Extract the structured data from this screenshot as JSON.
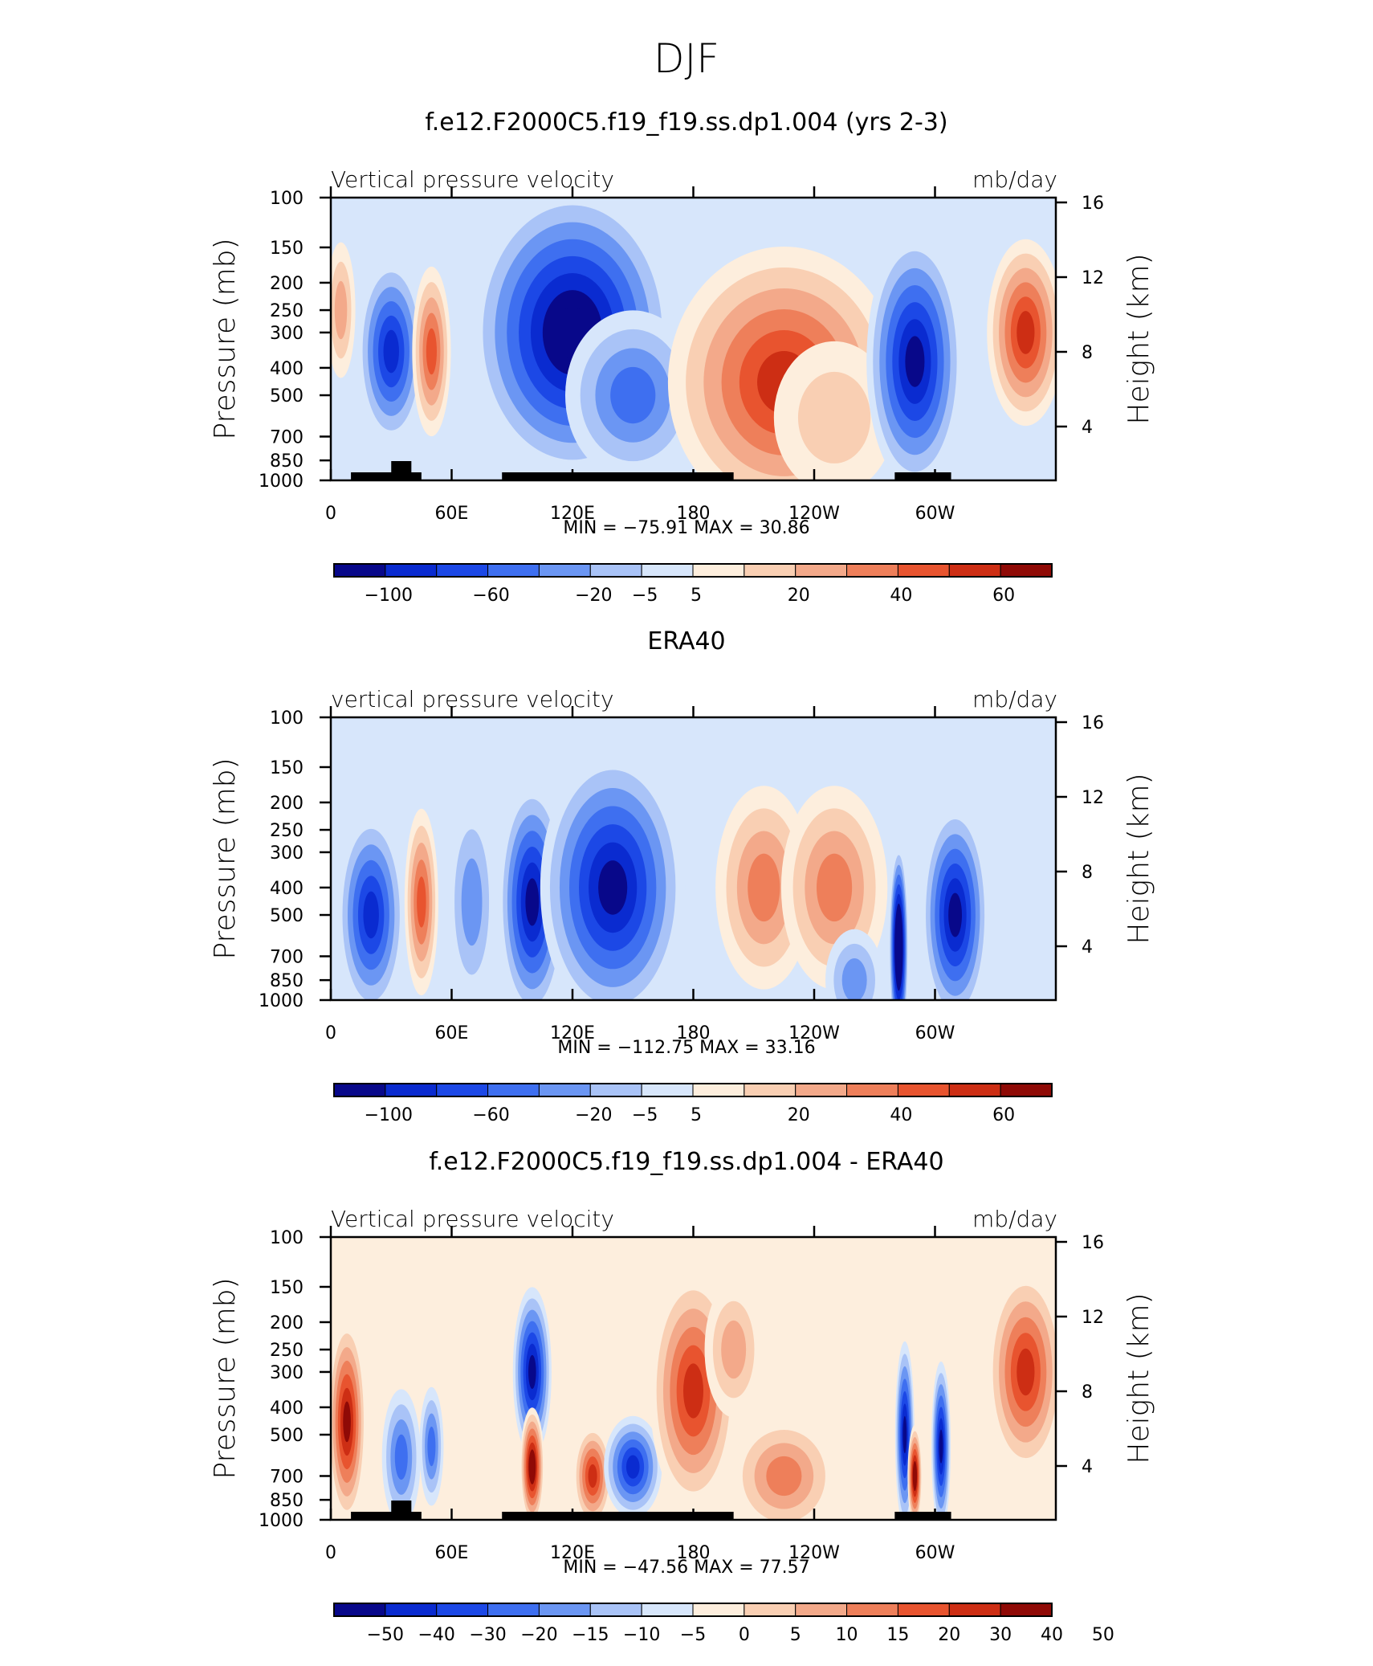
{
  "figure": {
    "main_title": "DJF"
  },
  "colors": {
    "scale": [
      "#08088a",
      "#0a2bd0",
      "#1c48e6",
      "#3e6ff0",
      "#6b96f3",
      "#a9c3f7",
      "#d7e6fb",
      "#fdeedd",
      "#f9cfb3",
      "#f3a98a",
      "#ee7f5a",
      "#e8542f",
      "#cd2e14",
      "#8f0a06"
    ]
  },
  "chart_data": [
    {
      "type": "heatmap",
      "title": "f.e12.F2000C5.f19_f19.ss.dp1.004 (yrs 2-3)",
      "left_label": "Vertical pressure velocity",
      "right_label": "mb/day",
      "ylabel": "Pressure (mb)",
      "ylabel2": "Height (km)",
      "x_ticks": [
        "0",
        "60E",
        "120E",
        "180",
        "120W",
        "60W"
      ],
      "y_ticks": [
        "100",
        "150",
        "200",
        "250",
        "300",
        "400",
        "500",
        "700",
        "850",
        "1000"
      ],
      "height_ticks": [
        "16",
        "12",
        "8",
        "4"
      ],
      "stats": "MIN = −75.91   MAX =   30.86",
      "colorbar_labels": [
        "−100",
        "−60",
        "−20",
        "−5",
        "5",
        "20",
        "40",
        "60"
      ],
      "blobs": [
        {
          "lon": 30,
          "p": 350,
          "w": 14,
          "h": 0.55,
          "v": -6
        },
        {
          "lon": 50,
          "p": 350,
          "w": 8,
          "h": 0.5,
          "v": 5
        },
        {
          "lon": 120,
          "p": 300,
          "w": 42,
          "h": 0.85,
          "v": -8
        },
        {
          "lon": 150,
          "p": 500,
          "w": 28,
          "h": 0.5,
          "v": -4
        },
        {
          "lon": 225,
          "p": 450,
          "w": 48,
          "h": 0.8,
          "v": 6
        },
        {
          "lon": 250,
          "p": 600,
          "w": 25,
          "h": 0.45,
          "v": 2
        },
        {
          "lon": 290,
          "p": 380,
          "w": 20,
          "h": 0.75,
          "v": -7
        },
        {
          "lon": 345,
          "p": 300,
          "w": 16,
          "h": 0.55,
          "v": 6
        },
        {
          "lon": 5,
          "p": 250,
          "w": 6,
          "h": 0.4,
          "v": 3
        }
      ]
    },
    {
      "type": "heatmap",
      "title": "ERA40",
      "left_label": "vertical pressure velocity",
      "right_label": "mb/day",
      "ylabel": "Pressure (mb)",
      "ylabel2": "Height (km)",
      "x_ticks": [
        "0",
        "60E",
        "120E",
        "180",
        "120W",
        "60W"
      ],
      "y_ticks": [
        "100",
        "150",
        "200",
        "250",
        "300",
        "400",
        "500",
        "700",
        "850",
        "1000"
      ],
      "height_ticks": [
        "16",
        "12",
        "8",
        "4"
      ],
      "stats": "MIN = −112.75   MAX =   33.16",
      "colorbar_labels": [
        "−100",
        "−60",
        "−20",
        "−5",
        "5",
        "20",
        "40",
        "60"
      ],
      "blobs": [
        {
          "lon": 20,
          "p": 500,
          "w": 14,
          "h": 0.6,
          "v": -6
        },
        {
          "lon": 45,
          "p": 450,
          "w": 7,
          "h": 0.55,
          "v": 5
        },
        {
          "lon": 70,
          "p": 450,
          "w": 10,
          "h": 0.6,
          "v": -3
        },
        {
          "lon": 100,
          "p": 450,
          "w": 14,
          "h": 0.7,
          "v": -7
        },
        {
          "lon": 140,
          "p": 400,
          "w": 30,
          "h": 0.8,
          "v": -7
        },
        {
          "lon": 215,
          "p": 400,
          "w": 20,
          "h": 0.6,
          "v": 4
        },
        {
          "lon": 250,
          "p": 400,
          "w": 22,
          "h": 0.6,
          "v": 4
        },
        {
          "lon": 282,
          "p": 650,
          "w": 4,
          "h": 0.6,
          "v": -10
        },
        {
          "lon": 310,
          "p": 500,
          "w": 14,
          "h": 0.65,
          "v": -7
        },
        {
          "lon": 260,
          "p": 850,
          "w": 12,
          "h": 0.3,
          "v": -3
        }
      ]
    },
    {
      "type": "heatmap",
      "title": "f.e12.F2000C5.f19_f19.ss.dp1.004 - ERA40",
      "left_label": "Vertical pressure velocity",
      "right_label": "mb/day",
      "ylabel": "Pressure (mb)",
      "ylabel2": "Height (km)",
      "x_ticks": [
        "0",
        "60E",
        "120E",
        "180",
        "120W",
        "60W"
      ],
      "y_ticks": [
        "100",
        "150",
        "200",
        "250",
        "300",
        "400",
        "500",
        "700",
        "850",
        "1000"
      ],
      "height_ticks": [
        "16",
        "12",
        "8",
        "4"
      ],
      "stats": "MIN = −47.56   MAX =   77.57",
      "colorbar_labels": [
        "−50",
        "−40",
        "−30",
        "−20",
        "−15",
        "−10",
        "−5",
        "0",
        "5",
        "10",
        "15",
        "20",
        "30",
        "40",
        "50"
      ],
      "blobs": [
        {
          "lon": 8,
          "p": 450,
          "w": 8,
          "h": 0.6,
          "v": 7
        },
        {
          "lon": 35,
          "p": 600,
          "w": 8,
          "h": 0.4,
          "v": -4
        },
        {
          "lon": 50,
          "p": 550,
          "w": 5,
          "h": 0.35,
          "v": -4
        },
        {
          "lon": 100,
          "p": 300,
          "w": 8,
          "h": 0.5,
          "v": -7
        },
        {
          "lon": 100,
          "p": 650,
          "w": 5,
          "h": 0.35,
          "v": 8
        },
        {
          "lon": 130,
          "p": 700,
          "w": 8,
          "h": 0.3,
          "v": 6
        },
        {
          "lon": 150,
          "p": 650,
          "w": 12,
          "h": 0.3,
          "v": -6
        },
        {
          "lon": 180,
          "p": 350,
          "w": 18,
          "h": 0.7,
          "v": 6
        },
        {
          "lon": 225,
          "p": 700,
          "w": 22,
          "h": 0.35,
          "v": 4
        },
        {
          "lon": 285,
          "p": 500,
          "w": 4,
          "h": 0.55,
          "v": -7
        },
        {
          "lon": 290,
          "p": 700,
          "w": 3,
          "h": 0.3,
          "v": 8
        },
        {
          "lon": 303,
          "p": 550,
          "w": 4,
          "h": 0.5,
          "v": -7
        },
        {
          "lon": 345,
          "p": 300,
          "w": 16,
          "h": 0.6,
          "v": 6
        },
        {
          "lon": 200,
          "p": 250,
          "w": 12,
          "h": 0.4,
          "v": 3
        }
      ]
    }
  ]
}
